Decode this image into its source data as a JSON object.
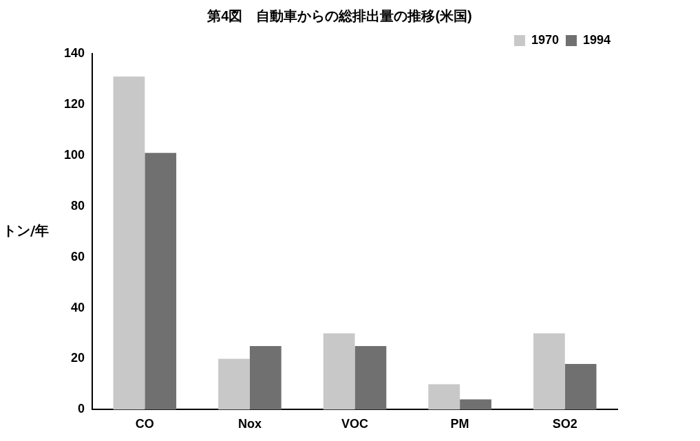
{
  "chart_data": {
    "type": "bar",
    "title": "第4図　自動車からの総排出量の推移(米国)",
    "ylabel": "トン/年",
    "categories": [
      "CO",
      "Nox",
      "VOC",
      "PM",
      "SO2"
    ],
    "series": [
      {
        "name": "1970",
        "color": "#c8c8c8",
        "values": [
          131,
          20,
          30,
          10,
          30
        ]
      },
      {
        "name": "1994",
        "color": "#707070",
        "values": [
          101,
          25,
          25,
          4,
          18
        ]
      }
    ],
    "ylim": [
      0,
      140
    ],
    "yticks": [
      0,
      20,
      40,
      60,
      80,
      100,
      120,
      140
    ],
    "grid": false,
    "legend": "top right"
  }
}
